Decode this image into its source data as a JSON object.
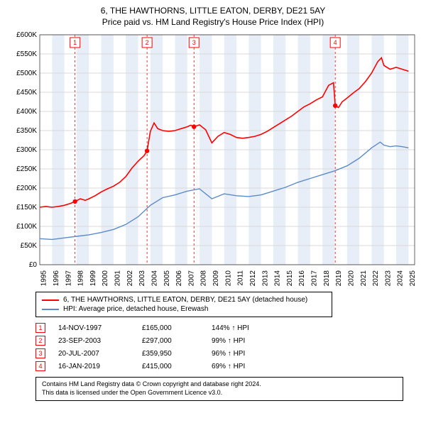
{
  "title_line1": "6, THE HAWTHORNS, LITTLE EATON, DERBY, DE21 5AY",
  "title_line2": "Price paid vs. HM Land Registry's House Price Index (HPI)",
  "chart": {
    "type": "line",
    "background_color": "#ffffff",
    "grid_color": "#d9d9d9",
    "xlim": [
      1995,
      2025.5
    ],
    "ylim": [
      0,
      600000
    ],
    "y_tick_step": 50000,
    "y_tick_labels": [
      "£0",
      "£50K",
      "£100K",
      "£150K",
      "£200K",
      "£250K",
      "£300K",
      "£350K",
      "£400K",
      "£450K",
      "£500K",
      "£550K",
      "£600K"
    ],
    "x_ticks": [
      1995,
      1996,
      1997,
      1998,
      1999,
      2000,
      2001,
      2002,
      2003,
      2004,
      2005,
      2006,
      2007,
      2008,
      2009,
      2010,
      2011,
      2012,
      2013,
      2014,
      2015,
      2016,
      2017,
      2018,
      2019,
      2020,
      2021,
      2022,
      2023,
      2024,
      2025
    ],
    "band_color": "#e8eef7",
    "series": {
      "property": {
        "color": "#ff0000",
        "width": 1.6,
        "label": "6, THE HAWTHORNS, LITTLE EATON, DERBY, DE21 5AY (detached house)",
        "points": [
          [
            1995.0,
            150000
          ],
          [
            1995.5,
            152000
          ],
          [
            1996.0,
            150000
          ],
          [
            1996.5,
            152000
          ],
          [
            1997.0,
            155000
          ],
          [
            1997.5,
            160000
          ],
          [
            1997.87,
            165000
          ],
          [
            1998.3,
            172000
          ],
          [
            1998.7,
            168000
          ],
          [
            1999.0,
            172000
          ],
          [
            1999.5,
            180000
          ],
          [
            2000.0,
            190000
          ],
          [
            2000.5,
            198000
          ],
          [
            2001.0,
            205000
          ],
          [
            2001.5,
            215000
          ],
          [
            2002.0,
            230000
          ],
          [
            2002.5,
            252000
          ],
          [
            2003.0,
            270000
          ],
          [
            2003.5,
            285000
          ],
          [
            2003.73,
            297000
          ],
          [
            2004.0,
            348000
          ],
          [
            2004.3,
            370000
          ],
          [
            2004.6,
            355000
          ],
          [
            2005.0,
            350000
          ],
          [
            2005.5,
            348000
          ],
          [
            2006.0,
            350000
          ],
          [
            2006.5,
            355000
          ],
          [
            2007.0,
            360000
          ],
          [
            2007.3,
            364000
          ],
          [
            2007.55,
            360000
          ],
          [
            2008.0,
            365000
          ],
          [
            2008.5,
            352000
          ],
          [
            2009.0,
            318000
          ],
          [
            2009.5,
            335000
          ],
          [
            2010.0,
            345000
          ],
          [
            2010.5,
            340000
          ],
          [
            2011.0,
            332000
          ],
          [
            2011.5,
            330000
          ],
          [
            2012.0,
            332000
          ],
          [
            2012.5,
            335000
          ],
          [
            2013.0,
            340000
          ],
          [
            2013.5,
            348000
          ],
          [
            2014.0,
            358000
          ],
          [
            2014.5,
            368000
          ],
          [
            2015.0,
            378000
          ],
          [
            2015.5,
            388000
          ],
          [
            2016.0,
            400000
          ],
          [
            2016.5,
            412000
          ],
          [
            2017.0,
            420000
          ],
          [
            2017.5,
            430000
          ],
          [
            2018.0,
            438000
          ],
          [
            2018.5,
            468000
          ],
          [
            2018.9,
            475000
          ],
          [
            2019.04,
            415000
          ],
          [
            2019.3,
            410000
          ],
          [
            2019.6,
            425000
          ],
          [
            2020.0,
            435000
          ],
          [
            2020.5,
            448000
          ],
          [
            2021.0,
            460000
          ],
          [
            2021.5,
            478000
          ],
          [
            2022.0,
            500000
          ],
          [
            2022.5,
            530000
          ],
          [
            2022.8,
            540000
          ],
          [
            2023.0,
            520000
          ],
          [
            2023.5,
            510000
          ],
          [
            2024.0,
            515000
          ],
          [
            2024.5,
            510000
          ],
          [
            2025.0,
            505000
          ]
        ]
      },
      "hpi": {
        "color": "#5b8bc9",
        "width": 1.4,
        "label": "HPI: Average price, detached house, Erewash",
        "points": [
          [
            1995.0,
            68000
          ],
          [
            1996.0,
            66000
          ],
          [
            1997.0,
            70000
          ],
          [
            1998.0,
            74000
          ],
          [
            1999.0,
            78000
          ],
          [
            2000.0,
            84000
          ],
          [
            2001.0,
            92000
          ],
          [
            2002.0,
            105000
          ],
          [
            2003.0,
            125000
          ],
          [
            2004.0,
            155000
          ],
          [
            2005.0,
            175000
          ],
          [
            2006.0,
            182000
          ],
          [
            2007.0,
            192000
          ],
          [
            2008.0,
            198000
          ],
          [
            2009.0,
            172000
          ],
          [
            2010.0,
            185000
          ],
          [
            2011.0,
            180000
          ],
          [
            2012.0,
            178000
          ],
          [
            2013.0,
            182000
          ],
          [
            2014.0,
            192000
          ],
          [
            2015.0,
            202000
          ],
          [
            2016.0,
            215000
          ],
          [
            2017.0,
            225000
          ],
          [
            2018.0,
            235000
          ],
          [
            2019.0,
            245000
          ],
          [
            2020.0,
            258000
          ],
          [
            2021.0,
            278000
          ],
          [
            2022.0,
            305000
          ],
          [
            2022.7,
            320000
          ],
          [
            2023.0,
            312000
          ],
          [
            2023.5,
            308000
          ],
          [
            2024.0,
            310000
          ],
          [
            2024.5,
            308000
          ],
          [
            2025.0,
            305000
          ]
        ]
      }
    },
    "sale_markers": [
      {
        "n": "1",
        "year": 1997.87,
        "value": 165000
      },
      {
        "n": "2",
        "year": 2003.73,
        "value": 297000
      },
      {
        "n": "3",
        "year": 2007.55,
        "value": 359950
      },
      {
        "n": "4",
        "year": 2019.04,
        "value": 415000
      }
    ],
    "marker_color": "#ff0000",
    "marker_dash": "3,3"
  },
  "legend": [
    {
      "color": "#ff0000",
      "text": "6, THE HAWTHORNS, LITTLE EATON, DERBY, DE21 5AY (detached house)"
    },
    {
      "color": "#5b8bc9",
      "text": "HPI: Average price, detached house, Erewash"
    }
  ],
  "sales": [
    {
      "n": "1",
      "date": "14-NOV-1997",
      "price": "£165,000",
      "pct": "144% ↑ HPI"
    },
    {
      "n": "2",
      "date": "23-SEP-2003",
      "price": "£297,000",
      "pct": "99% ↑ HPI"
    },
    {
      "n": "3",
      "date": "20-JUL-2007",
      "price": "£359,950",
      "pct": "96% ↑ HPI"
    },
    {
      "n": "4",
      "date": "16-JAN-2019",
      "price": "£415,000",
      "pct": "69% ↑ HPI"
    }
  ],
  "footnote_line1": "Contains HM Land Registry data © Crown copyright and database right 2024.",
  "footnote_line2": "This data is licensed under the Open Government Licence v3.0."
}
